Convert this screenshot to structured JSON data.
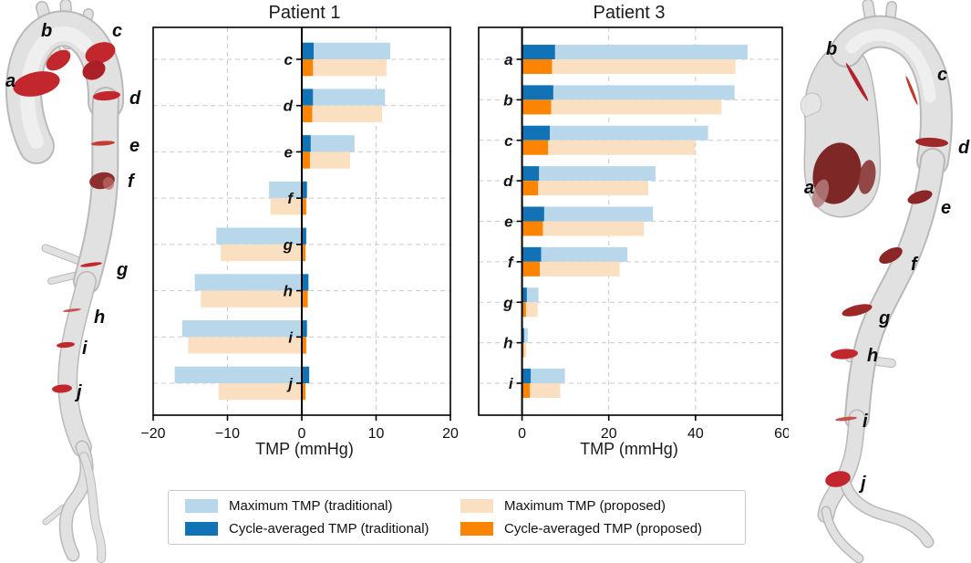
{
  "anatomy": {
    "sections": [
      "a",
      "b",
      "c",
      "d",
      "e",
      "f",
      "g",
      "h",
      "i",
      "j"
    ],
    "section_color": "#c1272d",
    "dark_section_color": "#7e2727"
  },
  "chart_data": [
    {
      "type": "bar",
      "orientation": "horizontal",
      "title": "Patient 1",
      "xlabel": "TMP (mmHg)",
      "xlim": [
        -20,
        20
      ],
      "xticks": [
        -20,
        -10,
        0,
        10,
        20
      ],
      "grid": "dashed",
      "categories": [
        "c",
        "d",
        "e",
        "f",
        "g",
        "h",
        "i",
        "j"
      ],
      "series": [
        {
          "key": "max-trad",
          "name": "Maximum TMP (traditional)",
          "color": "#b9d7ea",
          "values": [
            11.9,
            11.2,
            7.1,
            -4.4,
            -11.5,
            -14.4,
            -16.1,
            -17.1
          ]
        },
        {
          "key": "cyc-trad",
          "name": "Cycle-averaged TMP (traditional)",
          "color": "#1173b5",
          "values": [
            1.6,
            1.5,
            1.2,
            0.7,
            0.6,
            0.9,
            0.7,
            1.0
          ]
        },
        {
          "key": "max-prop",
          "name": "Maximum TMP (proposed)",
          "color": "#fbdfc1",
          "values": [
            11.4,
            10.8,
            6.5,
            -4.2,
            -10.9,
            -13.6,
            -15.3,
            -11.2
          ]
        },
        {
          "key": "cyc-prop",
          "name": "Cycle-averaged TMP (proposed)",
          "color": "#fb8403",
          "values": [
            1.5,
            1.4,
            1.1,
            0.6,
            0.5,
            0.8,
            0.6,
            0.5
          ]
        }
      ]
    },
    {
      "type": "bar",
      "orientation": "horizontal",
      "title": "Patient 3",
      "xlabel": "TMP (mmHg)",
      "xlim": [
        -10,
        60
      ],
      "xticks": [
        0,
        20,
        40,
        60
      ],
      "grid": "dashed",
      "categories": [
        "a",
        "b",
        "c",
        "d",
        "e",
        "f",
        "g",
        "h",
        "i"
      ],
      "series": [
        {
          "key": "max-trad",
          "name": "Maximum TMP (traditional)",
          "color": "#b9d7ea",
          "values": [
            52.0,
            49.0,
            42.9,
            30.8,
            30.2,
            24.3,
            3.8,
            1.3,
            9.9
          ]
        },
        {
          "key": "cyc-trad",
          "name": "Cycle-averaged TMP (traditional)",
          "color": "#1173b5",
          "values": [
            7.6,
            7.2,
            6.4,
            3.9,
            5.1,
            4.4,
            1.1,
            0.5,
            2.0
          ]
        },
        {
          "key": "max-prop",
          "name": "Maximum TMP (proposed)",
          "color": "#fbdfc1",
          "values": [
            49.2,
            46.0,
            39.9,
            29.1,
            28.1,
            22.5,
            3.6,
            1.0,
            8.8
          ]
        },
        {
          "key": "cyc-prop",
          "name": "Cycle-averaged TMP (proposed)",
          "color": "#fb8403",
          "values": [
            6.9,
            6.7,
            6.0,
            3.7,
            4.8,
            4.1,
            0.9,
            0.4,
            1.8
          ]
        }
      ]
    }
  ],
  "legend": {
    "items": [
      {
        "label": "Maximum TMP (traditional)",
        "color": "#b9d7ea"
      },
      {
        "label": "Cycle-averaged TMP (traditional)",
        "color": "#1173b5"
      },
      {
        "label": "Maximum TMP (proposed)",
        "color": "#fbdfc1"
      },
      {
        "label": "Cycle-averaged TMP (proposed)",
        "color": "#fb8403"
      }
    ]
  }
}
